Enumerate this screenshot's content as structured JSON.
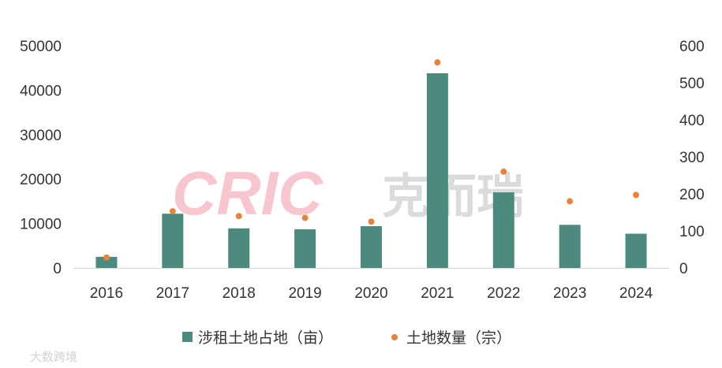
{
  "chart_data": {
    "type": "bar",
    "categories": [
      "2016",
      "2017",
      "2018",
      "2019",
      "2020",
      "2021",
      "2022",
      "2023",
      "2024"
    ],
    "series": [
      {
        "name": "涉租土地占地（亩）",
        "kind": "bar",
        "axis": "left",
        "color": "#4d8a7e",
        "values": [
          2500,
          12200,
          8900,
          8700,
          9400,
          43800,
          17000,
          9700,
          7700
        ]
      },
      {
        "name": "土地数量（宗）",
        "kind": "scatter",
        "axis": "right",
        "color": "#e8843a",
        "values": [
          28,
          153,
          140,
          135,
          125,
          555,
          260,
          180,
          197
        ]
      }
    ],
    "y_left": {
      "ylim": [
        0,
        50000
      ],
      "ticks": [
        0,
        10000,
        20000,
        30000,
        40000,
        50000
      ]
    },
    "y_right": {
      "ylim": [
        0,
        600
      ],
      "ticks": [
        0,
        100,
        200,
        300,
        400,
        500,
        600
      ]
    },
    "legend_position": "bottom",
    "grid": false
  },
  "watermark": {
    "latin": "CRIC",
    "chinese": "克而瑞",
    "corner": "大数跨境"
  }
}
